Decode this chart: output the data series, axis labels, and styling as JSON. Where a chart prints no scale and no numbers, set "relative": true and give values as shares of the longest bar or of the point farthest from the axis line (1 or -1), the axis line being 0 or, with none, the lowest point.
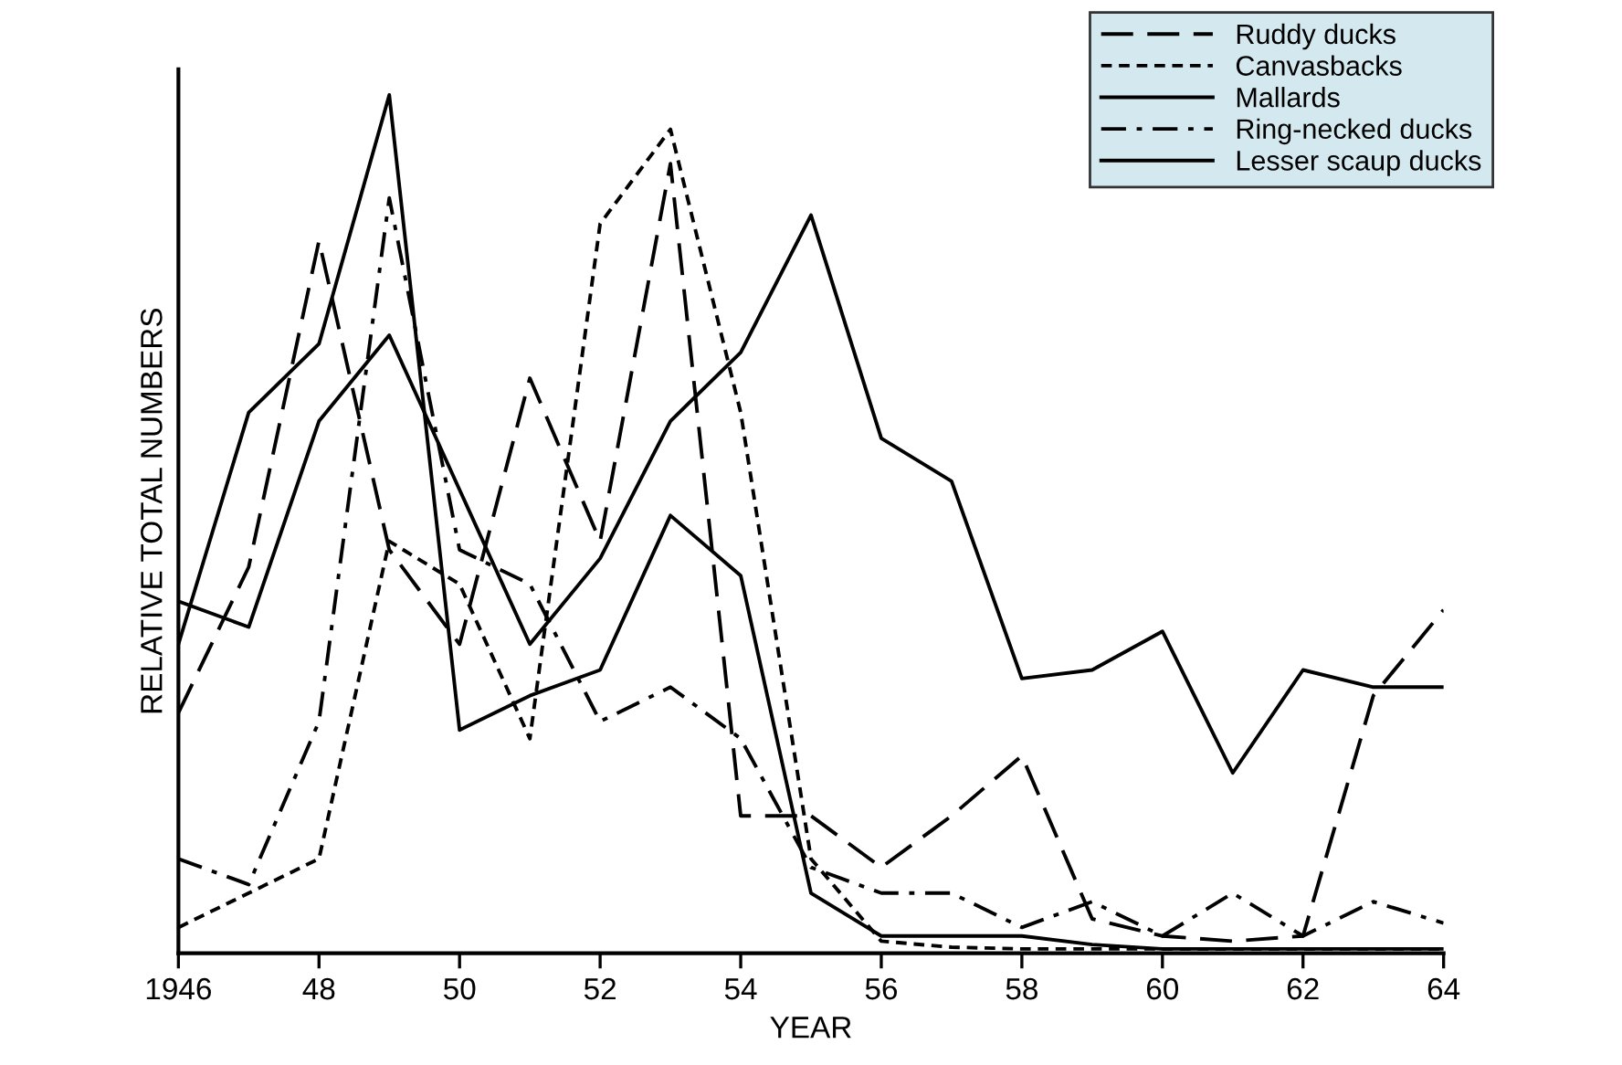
{
  "chart_data": {
    "type": "line",
    "relative": true,
    "xlabel": "YEAR",
    "ylabel": "RELATIVE TOTAL NUMBERS",
    "x": [
      1946,
      1947,
      1948,
      1949,
      1950,
      1951,
      1952,
      1953,
      1954,
      1955,
      1956,
      1957,
      1958,
      1959,
      1960,
      1961,
      1962,
      1963,
      1964
    ],
    "xlim": [
      1946,
      1964
    ],
    "xticks": [
      1946,
      {
        "value": 1948,
        "label": "48"
      },
      {
        "value": 1950,
        "label": "50"
      },
      {
        "value": 1952,
        "label": "52"
      },
      {
        "value": 1954,
        "label": "54"
      },
      {
        "value": 1956,
        "label": "56"
      },
      {
        "value": 1958,
        "label": "58"
      },
      {
        "value": 1960,
        "label": "60"
      },
      {
        "value": 1962,
        "label": "62"
      },
      {
        "value": 1964,
        "label": "64"
      }
    ],
    "legend": "top right",
    "grid": false,
    "marker": "none",
    "series": [
      {
        "name": "Ruddy ducks",
        "color": "#000000",
        "line_style": "dashed",
        "values": [
          0.28,
          0.45,
          0.83,
          0.47,
          0.36,
          0.67,
          0.48,
          0.92,
          0.16,
          0.16,
          0.1,
          0.16,
          0.23,
          0.04,
          0.02,
          0.014,
          0.02,
          0.3,
          0.4
        ]
      },
      {
        "name": "Canvasbacks",
        "color": "#000000",
        "line_style": "dotted",
        "values": [
          0.03,
          0.07,
          0.11,
          0.48,
          0.43,
          0.25,
          0.85,
          0.96,
          0.63,
          0.11,
          0.014,
          0.007,
          0.005,
          0.005,
          0.005,
          0.005,
          0.005,
          0.005,
          0.005
        ]
      },
      {
        "name": "Mallards",
        "color": "#000000",
        "line_style": "solid",
        "values": [
          0.41,
          0.38,
          0.62,
          0.72,
          0.54,
          0.36,
          0.46,
          0.62,
          0.7,
          0.86,
          0.6,
          0.55,
          0.32,
          0.33,
          0.375,
          0.21,
          0.33,
          0.31,
          0.31
        ]
      },
      {
        "name": "Ring-necked ducks",
        "color": "#000000",
        "line_style": "dashdot",
        "values": [
          0.11,
          0.08,
          0.27,
          0.88,
          0.47,
          0.43,
          0.27,
          0.31,
          0.25,
          0.1,
          0.07,
          0.07,
          0.03,
          0.06,
          0.02,
          0.07,
          0.02,
          0.06,
          0.035
        ]
      },
      {
        "name": "Lesser scaup ducks",
        "color": "#000000",
        "line_style": "solid",
        "values": [
          0.36,
          0.63,
          0.71,
          1.0,
          0.26,
          0.3,
          0.33,
          0.51,
          0.44,
          0.07,
          0.02,
          0.02,
          0.02,
          0.01,
          0.005,
          0.005,
          0.005,
          0.005,
          0.005
        ]
      }
    ]
  }
}
